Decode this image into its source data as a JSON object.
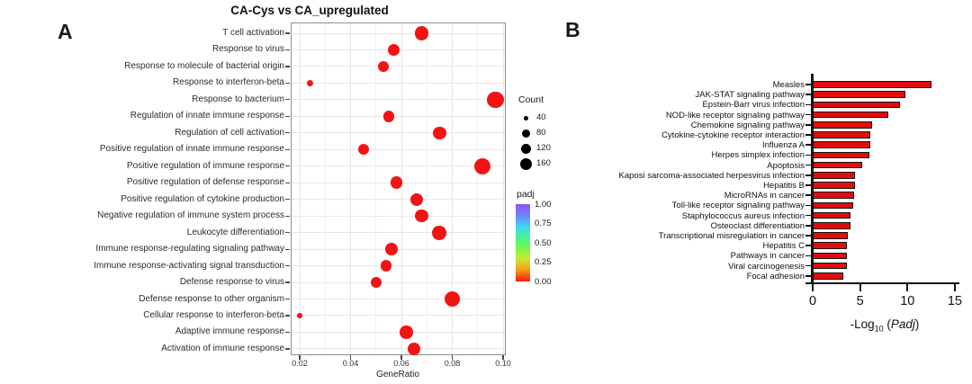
{
  "figure": {
    "panel_a_label": "A",
    "panel_b_label": "B"
  },
  "chart_data": [
    {
      "type": "scatter",
      "id": "go-enrichment-dotplot",
      "title": "CA-Cys vs CA_upregulated",
      "xlabel": "GeneRatio",
      "xlim": [
        0.016,
        0.102
      ],
      "xticks": [
        0.02,
        0.04,
        0.06,
        0.08,
        0.1
      ],
      "xtick_labels": [
        "0.02",
        "0.04",
        "0.06",
        "0.08",
        "0.10"
      ],
      "grid": true,
      "dot_color": "#f21414",
      "categories": [
        "T cell activation",
        "Response to virus",
        "Response to molecule of bacterial origin",
        "Response to interferon-beta",
        "Response to bacterium",
        "Regulation of innate immune response",
        "Regulation of cell activation",
        "Positive regulation of innate immune response",
        "Positive regulation of immune response",
        "Positive regulation of defense response",
        "Positive regulation of cytokine production",
        "Negative regulation of immune system process",
        "Leukocyte differentiation",
        "Immune response-regulating signaling pathway",
        "Immune response-activating signal transduction",
        "Defense response to virus",
        "Defense response to other organism",
        "Cellular response to interferon-beta",
        "Adaptive immune response",
        "Activation of immune response"
      ],
      "gene_ratio": [
        0.068,
        0.057,
        0.053,
        0.024,
        0.097,
        0.055,
        0.075,
        0.045,
        0.092,
        0.058,
        0.066,
        0.068,
        0.075,
        0.056,
        0.054,
        0.05,
        0.08,
        0.02,
        0.062,
        0.065
      ],
      "count": [
        120,
        90,
        75,
        25,
        160,
        75,
        100,
        70,
        155,
        90,
        100,
        100,
        120,
        90,
        80,
        75,
        150,
        15,
        100,
        100
      ],
      "padj_all_dots_near": 0.0,
      "legend": {
        "count_title": "Count",
        "count_sizes": [
          "40",
          "80",
          "120",
          "160"
        ],
        "padj_title": "padj",
        "padj_ticks": [
          "1.00",
          "0.75",
          "0.50",
          "0.25",
          "0.00"
        ]
      }
    },
    {
      "type": "bar",
      "id": "kegg-pathway-barchart",
      "orientation": "horizontal",
      "xlabel_parts": {
        "pre": "-Log",
        "sub": "10",
        "open": " (",
        "italic": "Padj",
        "close": ")"
      },
      "xticks": [
        0,
        5,
        10,
        15
      ],
      "xlim": [
        0,
        15.4
      ],
      "grid": false,
      "bar_fill": "#e00d0d",
      "bar_stroke": "#141414",
      "categories": [
        "Measles",
        "JAK-STAT signaling pathway",
        "Epstein-Barr virus infection",
        "NOD-like receptor signaling pathway",
        "Chemokine signaling pathway",
        "Cytokine-cytokine receptor interaction",
        "Influenza A",
        "Herpes simplex infection",
        "Apoptosis",
        "Kaposi sarcoma-associated herpesvirus infection",
        "Hepatitis B",
        "MicroRNAs in cancer",
        "Toll-like receptor signaling pathway",
        "Staphylococcus aureus infection",
        "Osteoclast differentiation",
        "Transcriptional misregulation in cancer",
        "Hepatitis C",
        "Pathways in cancer",
        "Viral carcinogenesis",
        "Focal adhesion"
      ],
      "values": [
        12.5,
        9.8,
        9.2,
        8.0,
        6.3,
        6.1,
        6.1,
        6.0,
        5.2,
        4.5,
        4.5,
        4.4,
        4.3,
        4.0,
        4.0,
        3.7,
        3.6,
        3.6,
        3.6,
        3.2
      ]
    }
  ]
}
